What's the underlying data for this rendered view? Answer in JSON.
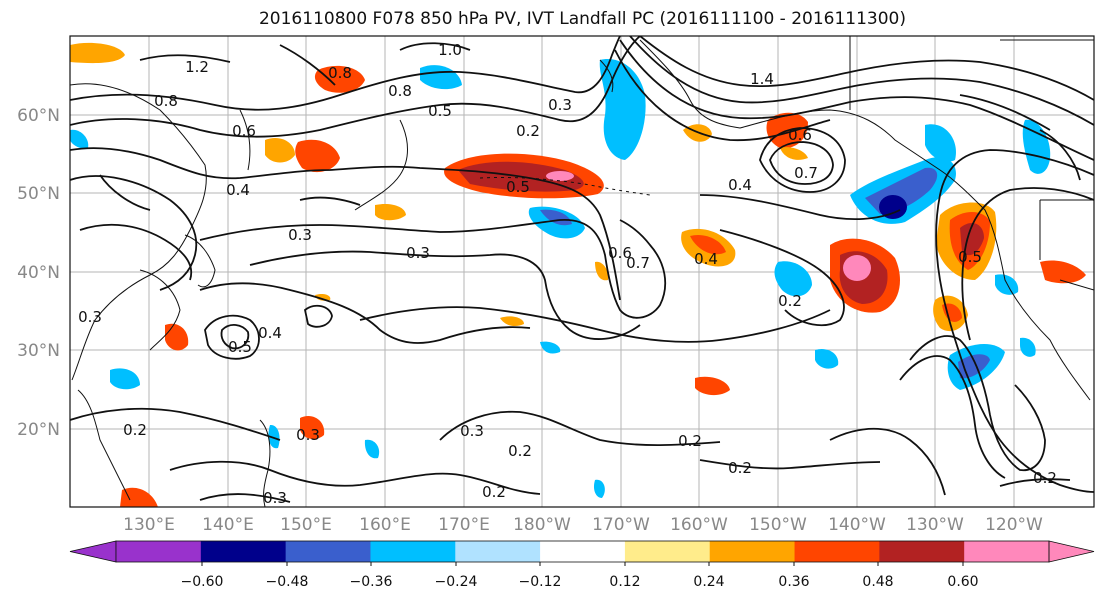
{
  "title": "2016110800 F078 850 hPa PV, IVT Landfall PC (2016111100 - 2016111300)",
  "lat_labels": [
    "60°N",
    "50°N",
    "40°N",
    "30°N",
    "20°N"
  ],
  "lon_labels": [
    "130°E",
    "140°E",
    "150°E",
    "160°E",
    "170°E",
    "180°W",
    "170°W",
    "160°W",
    "150°W",
    "140°W",
    "130°W",
    "120°W"
  ],
  "contour_labels": [
    "1.2",
    "0.8",
    "0.8",
    "1.0",
    "0.8",
    "0.6",
    "0.5",
    "0.3",
    "0.2",
    "1.4",
    "0.6",
    "0.7",
    "0.4",
    "0.5",
    "0.3",
    "0.4",
    "0.3",
    "0.5",
    "0.4",
    "0.3",
    "0.2",
    "0.3",
    "0.6",
    "0.7",
    "0.4",
    "0.2",
    "0.3",
    "0.2",
    "0.2",
    "0.2",
    "0.2",
    "0.3",
    "0.5",
    "0.2"
  ],
  "colorbar": {
    "ticks": [
      "−0.60",
      "−0.48",
      "−0.36",
      "−0.24",
      "−0.12",
      "0.12",
      "0.24",
      "0.36",
      "0.48",
      "0.60"
    ],
    "colors": [
      "#9932cc",
      "#00008b",
      "#3a5fcd",
      "#00bfff",
      "#b0e2ff",
      "#ffffff",
      "#ffec8b",
      "#ffa500",
      "#ff4500",
      "#b22222",
      "#ff88bb",
      "#ff88bb"
    ]
  }
}
